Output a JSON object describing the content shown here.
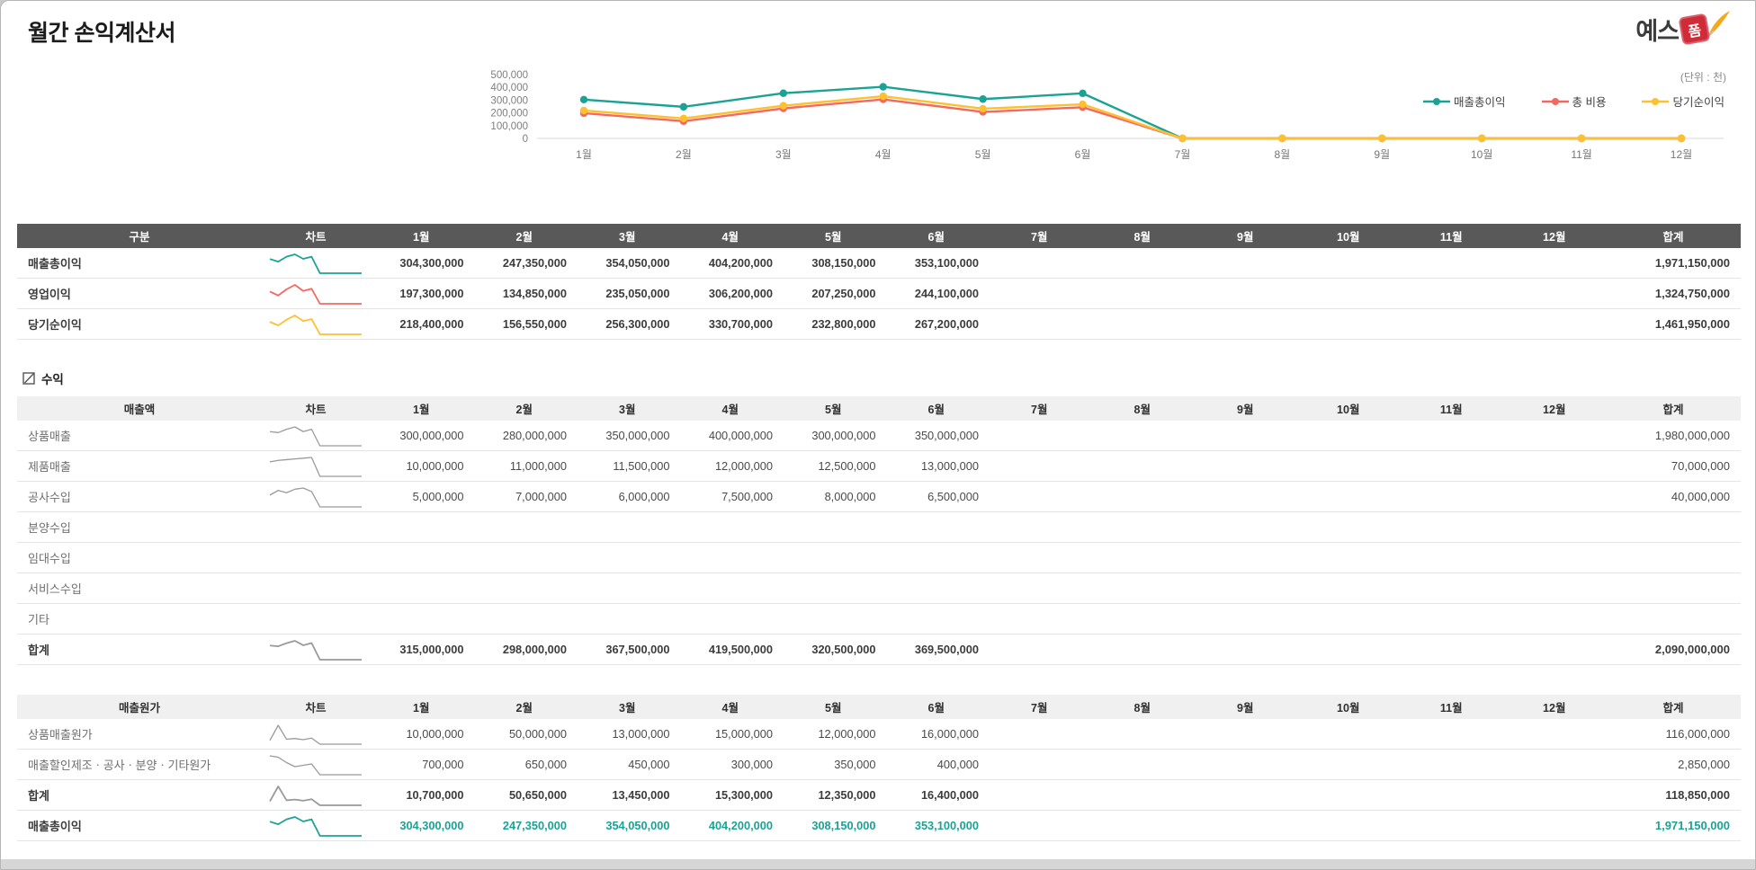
{
  "page": {
    "title": "월간 손익계산서",
    "unit_note": "(단위 : 천)",
    "logo": {
      "text": "예스",
      "stamp": "폼"
    },
    "revenue_section_label": "수익"
  },
  "months": [
    "1월",
    "2월",
    "3월",
    "4월",
    "5월",
    "6월",
    "7월",
    "8월",
    "9월",
    "10월",
    "11월",
    "12월"
  ],
  "chart_data": {
    "type": "line",
    "x": [
      "1월",
      "2월",
      "3월",
      "4월",
      "5월",
      "6월",
      "7월",
      "8월",
      "9월",
      "10월",
      "11월",
      "12월"
    ],
    "ylim": [
      0,
      500000
    ],
    "yticks": [
      0,
      100000,
      200000,
      300000,
      400000,
      500000
    ],
    "unit_note": "(단위 : 천)",
    "legend_position": "top-right",
    "grid": false,
    "series": [
      {
        "name": "매출총이익",
        "color": "#1ba294",
        "values": [
          304300,
          247350,
          354050,
          404200,
          308150,
          353100,
          0,
          0,
          0,
          0,
          0,
          0
        ]
      },
      {
        "name": "총 비용",
        "color": "#f4695f",
        "values": [
          197300,
          134850,
          235050,
          306200,
          207250,
          244100,
          0,
          0,
          0,
          0,
          0,
          0
        ]
      },
      {
        "name": "당기순이익",
        "color": "#fdc02f",
        "values": [
          218400,
          156550,
          256300,
          330700,
          232800,
          267200,
          0,
          0,
          0,
          0,
          0,
          0
        ]
      }
    ]
  },
  "tables": [
    {
      "id": "summary",
      "style": "dark",
      "label_header": "구분",
      "chart_header": "차트",
      "total_header": "합계",
      "rows": [
        {
          "label": "매출총이익",
          "bold": true,
          "spark_color": "#1ba294",
          "values": [
            "304,300,000",
            "247,350,000",
            "354,050,000",
            "404,200,000",
            "308,150,000",
            "353,100,000"
          ],
          "total": "1,971,150,000",
          "total_bold": true
        },
        {
          "label": "영업이익",
          "bold": true,
          "spark_color": "#f4695f",
          "values": [
            "197,300,000",
            "134,850,000",
            "235,050,000",
            "306,200,000",
            "207,250,000",
            "244,100,000"
          ],
          "total": "1,324,750,000",
          "total_bold": true
        },
        {
          "label": "당기순이익",
          "bold": true,
          "spark_color": "#fdc02f",
          "values": [
            "218,400,000",
            "156,550,000",
            "256,300,000",
            "330,700,000",
            "232,800,000",
            "267,200,000"
          ],
          "total": "1,461,950,000",
          "total_bold": true
        }
      ]
    },
    {
      "id": "revenue",
      "style": "light",
      "label_header": "매출액",
      "chart_header": "차트",
      "total_header": "합계",
      "rows": [
        {
          "label": "상품매출",
          "spark_color": "#9a9a9a",
          "values": [
            "300,000,000",
            "280,000,000",
            "350,000,000",
            "400,000,000",
            "300,000,000",
            "350,000,000"
          ],
          "total": "1,980,000,000"
        },
        {
          "label": "제품매출",
          "spark_color": "#9a9a9a",
          "values": [
            "10,000,000",
            "11,000,000",
            "11,500,000",
            "12,000,000",
            "12,500,000",
            "13,000,000"
          ],
          "total": "70,000,000"
        },
        {
          "label": "공사수입",
          "spark_color": "#9a9a9a",
          "values": [
            "5,000,000",
            "7,000,000",
            "6,000,000",
            "7,500,000",
            "8,000,000",
            "6,500,000"
          ],
          "total": "40,000,000"
        },
        {
          "label": "분양수입",
          "values": [
            "",
            "",
            "",
            "",
            "",
            ""
          ],
          "total": ""
        },
        {
          "label": "임대수입",
          "values": [
            "",
            "",
            "",
            "",
            "",
            ""
          ],
          "total": ""
        },
        {
          "label": "서비스수입",
          "values": [
            "",
            "",
            "",
            "",
            "",
            ""
          ],
          "total": ""
        },
        {
          "label": "기타",
          "values": [
            "",
            "",
            "",
            "",
            "",
            ""
          ],
          "total": ""
        },
        {
          "label": "합계",
          "bold": true,
          "spark_color": "#9a9a9a",
          "values": [
            "315,000,000",
            "298,000,000",
            "367,500,000",
            "419,500,000",
            "320,500,000",
            "369,500,000"
          ],
          "total": "2,090,000,000",
          "total_bold": true
        }
      ]
    },
    {
      "id": "cost",
      "style": "light",
      "label_header": "매출원가",
      "chart_header": "차트",
      "total_header": "합계",
      "rows": [
        {
          "label": "상품매출원가",
          "spark_color": "#9a9a9a",
          "values": [
            "10,000,000",
            "50,000,000",
            "13,000,000",
            "15,000,000",
            "12,000,000",
            "16,000,000"
          ],
          "total": "116,000,000"
        },
        {
          "label": "매출할인제조ㆍ공사ㆍ분양ㆍ기타원가",
          "spark_color": "#9a9a9a",
          "values": [
            "700,000",
            "650,000",
            "450,000",
            "300,000",
            "350,000",
            "400,000"
          ],
          "total": "2,850,000"
        },
        {
          "label": "합계",
          "bold": true,
          "spark_color": "#9a9a9a",
          "values": [
            "10,700,000",
            "50,650,000",
            "13,450,000",
            "15,300,000",
            "12,350,000",
            "16,400,000"
          ],
          "total": "118,850,000",
          "total_bold": true
        },
        {
          "label": "매출총이익",
          "bold": true,
          "spark_color": "#1ba294",
          "value_color": "#1ba294",
          "values": [
            "304,300,000",
            "247,350,000",
            "354,050,000",
            "404,200,000",
            "308,150,000",
            "353,100,000"
          ],
          "total": "1,971,150,000",
          "total_bold": true
        }
      ]
    }
  ]
}
